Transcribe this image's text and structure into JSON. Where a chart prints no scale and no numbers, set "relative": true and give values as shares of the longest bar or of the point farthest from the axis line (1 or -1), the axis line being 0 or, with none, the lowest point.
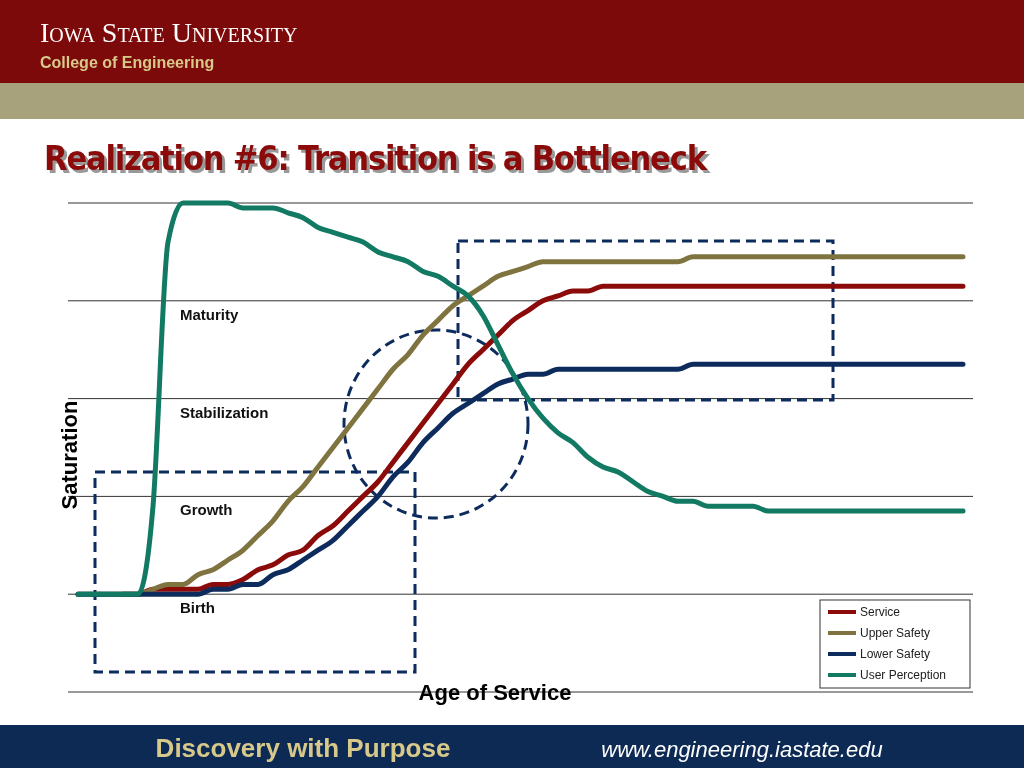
{
  "chart_data": {
    "type": "line",
    "title": "Realization #6: Transition is a Bottleneck",
    "xlabel": "Age of Service",
    "ylabel": "Saturation",
    "relative": true,
    "legend": "bottom right",
    "annotations": [
      "Iowa State University",
      "College of Engineering",
      "Discovery with Purpose",
      "www.engineering.iastate.edu"
    ],
    "categories": [
      null,
      null,
      null,
      null,
      null,
      null,
      null,
      null,
      null,
      null,
      null,
      null,
      null,
      null,
      null,
      null,
      null,
      null,
      null,
      null,
      null,
      null,
      null,
      null,
      null,
      null,
      null,
      null,
      null,
      null,
      null,
      null,
      null,
      null,
      null,
      null,
      null,
      null,
      null,
      null,
      null,
      null,
      null,
      null,
      null,
      null,
      null,
      null,
      null,
      null,
      null,
      null,
      null,
      null,
      null,
      null,
      null,
      null,
      null,
      null
    ],
    "ref_lines": [
      {
        "axis": "y",
        "value": 0.2,
        "label": "Birth"
      },
      {
        "axis": "y",
        "value": 0.4,
        "label": "Growth"
      },
      {
        "axis": "y",
        "value": 0.6,
        "label": "Stabilization"
      },
      {
        "axis": "y",
        "value": 0.8,
        "label": "Maturity"
      },
      {
        "axis": "y",
        "value": 1.0
      }
    ],
    "series": [
      {
        "name": "Service",
        "color": "#8b0a0a",
        "values": [
          null,
          null,
          null,
          0.2,
          0.2,
          0.21,
          0.21,
          0.21,
          0.21,
          0.22,
          0.22,
          0.23,
          0.25,
          0.26,
          0.28,
          0.29,
          0.32,
          0.34,
          0.37,
          0.4,
          0.43,
          0.47,
          0.51,
          0.55,
          0.59,
          0.63,
          0.67,
          0.7,
          0.73,
          0.76,
          0.78,
          0.8,
          0.81,
          0.82,
          0.82,
          0.83,
          0.83,
          0.83,
          0.83,
          0.83,
          0.83,
          0.83,
          0.83,
          0.83,
          0.83,
          0.83,
          0.83,
          0.83,
          0.83,
          0.83,
          0.83,
          0.83,
          0.83,
          0.83,
          0.83,
          0.83,
          0.83,
          0.83,
          0.83,
          0.83
        ]
      },
      {
        "name": "Upper Safety",
        "color": "#7f7440",
        "values": [
          0.2,
          0.2,
          0.2,
          0.2,
          0.2,
          0.21,
          0.22,
          0.22,
          0.24,
          0.25,
          0.27,
          0.29,
          0.32,
          0.35,
          0.39,
          0.42,
          0.46,
          0.5,
          0.54,
          0.58,
          0.62,
          0.66,
          0.69,
          0.73,
          0.76,
          0.79,
          0.81,
          0.83,
          0.85,
          0.86,
          0.87,
          0.88,
          0.88,
          0.88,
          0.88,
          0.88,
          0.88,
          0.88,
          0.88,
          0.88,
          0.88,
          0.89,
          0.89,
          0.89,
          0.89,
          0.89,
          0.89,
          0.89,
          0.89,
          0.89,
          0.89,
          0.89,
          0.89,
          0.89,
          0.89,
          0.89,
          0.89,
          0.89,
          0.89,
          0.89
        ]
      },
      {
        "name": "Lower Safety",
        "color": "#0d2b5c",
        "values": [
          0.2,
          0.2,
          0.2,
          0.2,
          0.2,
          0.2,
          0.2,
          0.2,
          0.2,
          0.21,
          0.21,
          0.22,
          0.22,
          0.24,
          0.25,
          0.27,
          0.29,
          0.31,
          0.34,
          0.37,
          0.4,
          0.44,
          0.47,
          0.51,
          0.54,
          0.57,
          0.59,
          0.61,
          0.63,
          0.64,
          0.65,
          0.65,
          0.66,
          0.66,
          0.66,
          0.66,
          0.66,
          0.66,
          0.66,
          0.66,
          0.66,
          0.67,
          0.67,
          0.67,
          0.67,
          0.67,
          0.67,
          0.67,
          0.67,
          0.67,
          0.67,
          0.67,
          0.67,
          0.67,
          0.67,
          0.67,
          0.67,
          0.67,
          0.67,
          0.67
        ]
      },
      {
        "name": "User Perception",
        "color": "#127a62",
        "values": [
          0.2,
          0.2,
          0.2,
          0.2,
          0.2,
          0.38,
          0.92,
          1.0,
          1.0,
          1.0,
          1.0,
          0.99,
          0.99,
          0.99,
          0.98,
          0.97,
          0.95,
          0.94,
          0.93,
          0.92,
          0.9,
          0.89,
          0.88,
          0.86,
          0.85,
          0.83,
          0.81,
          0.77,
          0.71,
          0.65,
          0.6,
          0.56,
          0.53,
          0.51,
          0.48,
          0.46,
          0.45,
          0.43,
          0.41,
          0.4,
          0.39,
          0.39,
          0.38,
          0.38,
          0.38,
          0.38,
          0.37,
          0.37,
          0.37,
          0.37,
          0.37,
          0.37,
          0.37,
          0.37,
          0.37,
          0.37,
          0.37,
          0.37,
          0.37,
          0.37
        ]
      }
    ]
  }
}
